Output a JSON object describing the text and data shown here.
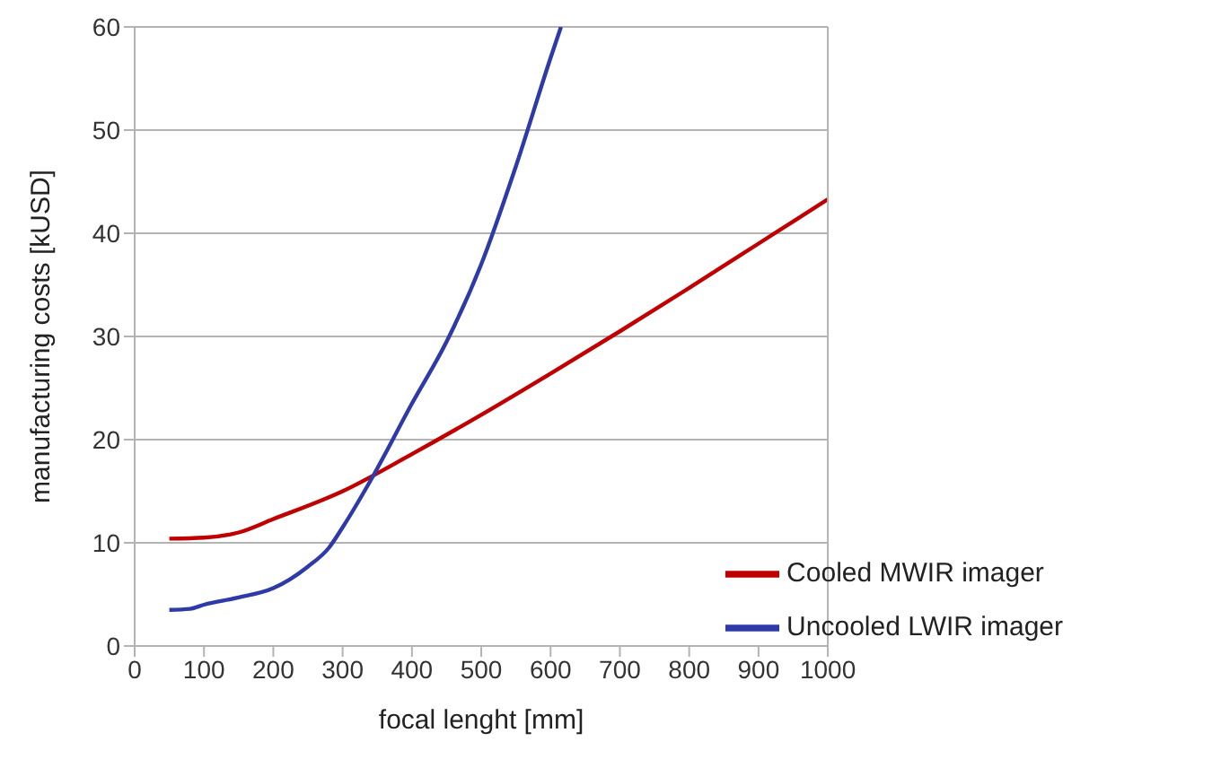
{
  "chart_data": {
    "type": "line",
    "xlabel": "focal lenght [mm]",
    "ylabel": "manufacturing costs [kUSD]",
    "xlim": [
      0,
      1000
    ],
    "xticks": [
      0,
      100,
      200,
      300,
      400,
      500,
      600,
      700,
      800,
      900,
      1000
    ],
    "ylim": [
      0,
      60
    ],
    "yticks": [
      0,
      10,
      20,
      30,
      40,
      50,
      60
    ],
    "grid": "y",
    "legend": "bottom right",
    "marker": "none",
    "line_style": "solid",
    "series": [
      {
        "name": "Cooled  MWIR imager",
        "color": "#c00000",
        "x": [
          50,
          100,
          150,
          200,
          300,
          400,
          500,
          600,
          700,
          800,
          900,
          1000
        ],
        "values": [
          10.4,
          10.5,
          11,
          12.3,
          15,
          18.6,
          22.4,
          26.4,
          30.5,
          34.7,
          39,
          43.3
        ]
      },
      {
        "name": "Uncooled  LWIR imager",
        "color": "#2e3aa8",
        "x": [
          50,
          80,
          100,
          150,
          200,
          250,
          280,
          300,
          340,
          400,
          450,
          500,
          550,
          600,
          615
        ],
        "values": [
          3.5,
          3.6,
          4,
          4.7,
          5.6,
          7.7,
          9.5,
          11.5,
          16,
          23.5,
          29.5,
          37,
          46.5,
          57,
          60
        ]
      }
    ]
  }
}
